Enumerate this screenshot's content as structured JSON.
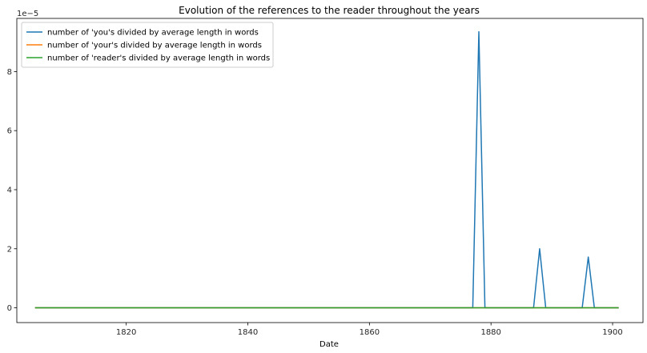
{
  "chart_data": {
    "type": "line",
    "title": "Evolution of the references to the reader throughout the years",
    "xlabel": "Date",
    "ylabel": "",
    "y_offset_label": "1e−5",
    "y_scale_factor": 1e-05,
    "xlim": [
      1802,
      1905
    ],
    "ylim": [
      -0.5,
      9.8
    ],
    "x_ticks": [
      1820,
      1840,
      1860,
      1880,
      1900
    ],
    "y_ticks": [
      0,
      2,
      4,
      6,
      8
    ],
    "grid": false,
    "legend_position": "top-left",
    "x": [
      1805,
      1877,
      1878,
      1879,
      1887,
      1888,
      1889,
      1895,
      1896,
      1897,
      1901
    ],
    "series": [
      {
        "name": "number of 'you's divided by average length in words",
        "color": "#1f77b4",
        "values": [
          0,
          0,
          9.35,
          0,
          0,
          2.0,
          0,
          0,
          1.72,
          0,
          0
        ]
      },
      {
        "name": "number of 'your's divided by average length in words",
        "color": "#ff7f0e",
        "values": [
          0,
          0,
          0,
          0,
          0,
          0,
          0,
          0,
          0,
          0,
          0
        ]
      },
      {
        "name": "number of 'reader's divided by average length in words",
        "color": "#2ca02c",
        "values": [
          0,
          0,
          0,
          0,
          0,
          0,
          0,
          0,
          0,
          0,
          0
        ]
      }
    ]
  }
}
